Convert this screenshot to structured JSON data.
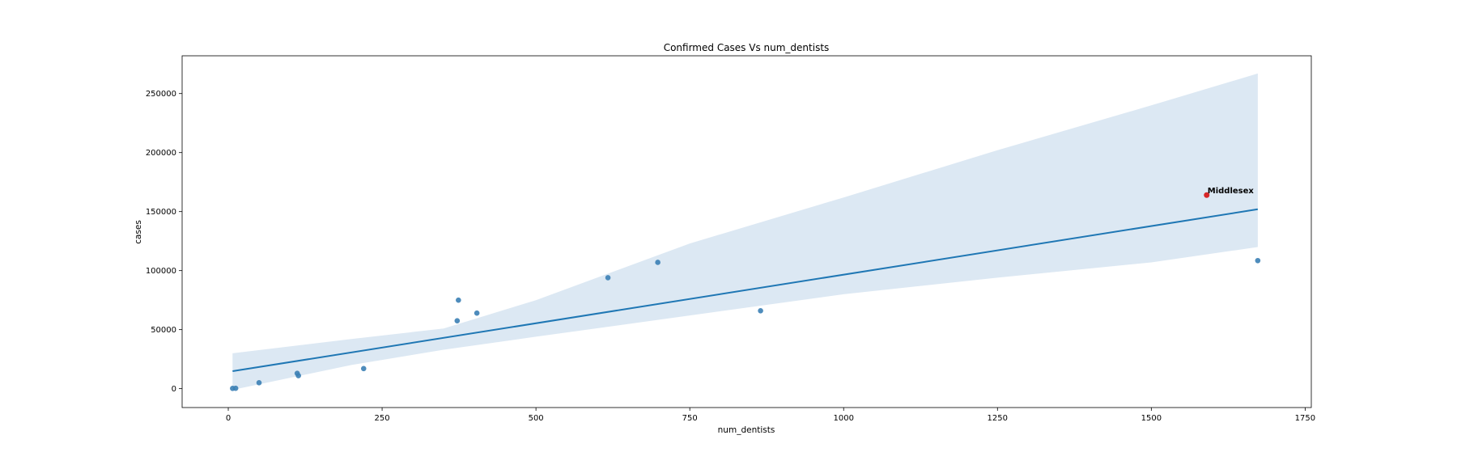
{
  "chart_data": {
    "type": "scatter",
    "title": "Confirmed Cases Vs num_dentists",
    "xlabel": "num_dentists",
    "ylabel": "cases",
    "xlim": [
      -75,
      1760
    ],
    "ylim": [
      -16000,
      282000
    ],
    "x_ticks": [
      0,
      250,
      500,
      750,
      1000,
      1250,
      1500,
      1750
    ],
    "y_ticks": [
      0,
      50000,
      100000,
      150000,
      200000,
      250000
    ],
    "grid": false,
    "colors": {
      "points": "#3b7fb5",
      "line": "#1f77b4",
      "band": "#dce8f3",
      "highlight": "#d62728"
    },
    "points": [
      {
        "x": 7,
        "y": 200
      },
      {
        "x": 12,
        "y": 300
      },
      {
        "x": 50,
        "y": 5000
      },
      {
        "x": 112,
        "y": 13000
      },
      {
        "x": 114,
        "y": 11000
      },
      {
        "x": 220,
        "y": 17000
      },
      {
        "x": 372,
        "y": 57500
      },
      {
        "x": 374,
        "y": 75000
      },
      {
        "x": 404,
        "y": 64000
      },
      {
        "x": 617,
        "y": 94000
      },
      {
        "x": 698,
        "y": 107000
      },
      {
        "x": 865,
        "y": 66000
      },
      {
        "x": 1673,
        "y": 108500
      }
    ],
    "highlight": {
      "x": 1590,
      "y": 164000,
      "label": "Middlesex"
    },
    "regression": {
      "x": [
        7,
        1673
      ],
      "y": [
        14800,
        152000
      ]
    },
    "confidence_band": {
      "x": [
        7,
        200,
        350,
        500,
        750,
        1000,
        1250,
        1500,
        1673
      ],
      "upper": [
        30000,
        42000,
        51000,
        75000,
        123000,
        162000,
        202000,
        240000,
        267000
      ],
      "lower": [
        -1000,
        20000,
        33000,
        44000,
        62000,
        80000,
        94000,
        107000,
        120000
      ]
    }
  }
}
